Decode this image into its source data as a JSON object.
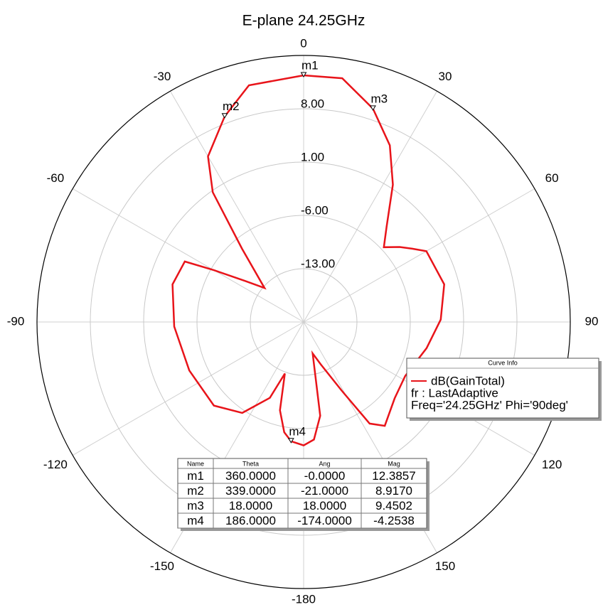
{
  "chart_data": {
    "type": "polar",
    "title": "E-plane 24.25GHz",
    "rlim": [
      -20,
      15
    ],
    "rticks": [
      {
        "value": -13,
        "label": "-13.00"
      },
      {
        "value": -6,
        "label": "-6.00"
      },
      {
        "value": 1,
        "label": "1.00"
      },
      {
        "value": 8,
        "label": "8.00"
      }
    ],
    "angle_ticks": [
      0,
      30,
      60,
      90,
      120,
      150,
      {
        "value": 180,
        "label": "-180"
      },
      -150,
      -120,
      -90,
      -60,
      -30
    ],
    "grid": true,
    "legend": {
      "title": "Curve Info",
      "lines": [
        "fr : LastAdaptive",
        "Freq='24.25GHz' Phi='90deg'"
      ]
    },
    "series": [
      {
        "name": "dB(GainTotal)",
        "color": "#e8141a",
        "theta": [
          0,
          9,
          18,
          26,
          33,
          41,
          47,
          52,
          56,
          60,
          75,
          89,
          102,
          118,
          130,
          142,
          147,
          151,
          158,
          164,
          170,
          175,
          180,
          186,
          190,
          195,
          200,
          204,
          214,
          227,
          247,
          268,
          286,
          297,
          300,
          305,
          311,
          320,
          325,
          330,
          339,
          347,
          360
        ],
        "values": [
          12.39,
          12.4,
          9.45,
          5.8,
          1.5,
          -3.4,
          -5.6,
          -4.0,
          -2.8,
          -1.4,
          -0.9,
          -2.0,
          -3.5,
          -4.9,
          -4.4,
          -2.7,
          -4.1,
          -9.7,
          -14,
          -15.7,
          -7.5,
          -4.5,
          -3.8,
          -4.25,
          -5.3,
          -8.0,
          -12.8,
          -9.1,
          -5.6,
          -3.9,
          -3.7,
          -3.0,
          -2.1,
          -2.5,
          -6.4,
          -10.6,
          -13.2,
          -7.4,
          0.8,
          5.1,
          8.92,
          11.9,
          12.39
        ]
      }
    ],
    "marker_table": {
      "headers": [
        "Name",
        "Theta",
        "Ang",
        "Mag"
      ],
      "markers": [
        {
          "name": "m1",
          "theta": 360,
          "theta_label": "360.0000",
          "ang": -0.0,
          "ang_label": "-0.0000",
          "mag": 12.3857,
          "mag_label": "12.3857"
        },
        {
          "name": "m2",
          "theta": 339,
          "theta_label": "339.0000",
          "ang": -21,
          "ang_label": "-21.0000",
          "mag": 8.917,
          "mag_label": "8.9170"
        },
        {
          "name": "m3",
          "theta": 18,
          "theta_label": "18.0000",
          "ang": 18,
          "ang_label": "18.0000",
          "mag": 9.4502,
          "mag_label": "9.4502"
        },
        {
          "name": "m4",
          "theta": 186,
          "theta_label": "186.0000",
          "ang": -174,
          "ang_label": "-174.0000",
          "mag": -4.2538,
          "mag_label": "-4.2538"
        }
      ]
    }
  }
}
